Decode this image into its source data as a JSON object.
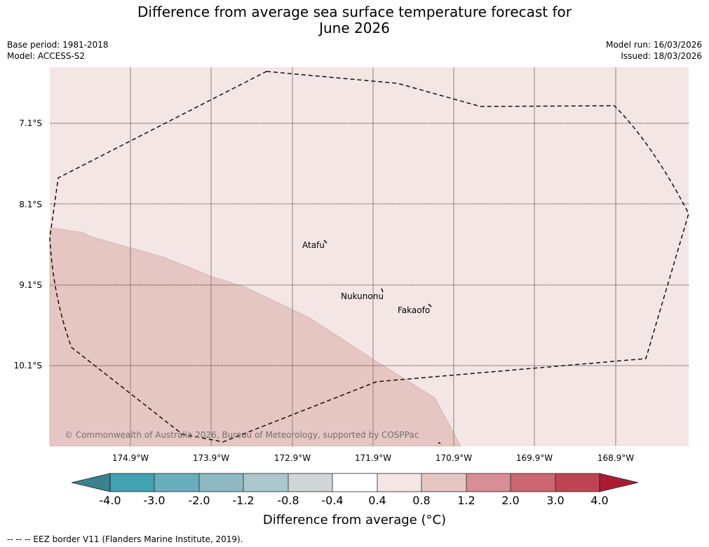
{
  "title_line1": "Difference from average sea surface temperature forecast for",
  "title_line2": "June 2026",
  "meta_left": {
    "base_period": "Base period: 1981-2018",
    "model": "Model: ACCESS-S2"
  },
  "meta_right": {
    "model_run": "Model run: 16/03/2026",
    "issued": "Issued: 18/03/2026"
  },
  "map": {
    "lat_labels": [
      "7.1°S",
      "8.1°S",
      "9.1°S",
      "10.1°S"
    ],
    "lon_labels": [
      "174.9°W",
      "173.9°W",
      "172.9°W",
      "171.9°W",
      "170.9°W",
      "169.9°W",
      "168.9°W"
    ],
    "places": [
      {
        "name": "Atafu",
        "lon": -172.52,
        "lat": -8.58
      },
      {
        "name": "Nukunonu",
        "lon": -171.8,
        "lat": -9.17
      },
      {
        "name": "Fakaofo",
        "lon": -171.21,
        "lat": -9.37
      }
    ],
    "copyright": "© Commonwealth of Australia 2026, Bureau of Meteorology, supported by COSPPac",
    "fill_colors": {
      "light": "#f4e6e5",
      "medium": "#e6c6c2",
      "border": "#c4a29e"
    },
    "anomaly_regions": [
      {
        "label": "0.4 to 0.8",
        "color": "#f4e6e5",
        "area": "most of map"
      },
      {
        "label": "0.8 to 1.2",
        "color": "#e6c6c2",
        "area": "south-west"
      }
    ]
  },
  "colorbar": {
    "ticks": [
      "-4.0",
      "-3.0",
      "-2.0",
      "-1.2",
      "-0.8",
      "-0.4",
      "0.4",
      "0.8",
      "1.2",
      "2.0",
      "3.0",
      "4.0"
    ],
    "colors": [
      "#41a2b2",
      "#69aebc",
      "#8db9c3",
      "#aac8cc",
      "#d0d6d8",
      "#ffffff",
      "#f4e6e5",
      "#e6c6c2",
      "#d78e95",
      "#cc6670",
      "#bf4452"
    ],
    "extend_low_color": "#38838f",
    "extend_high_color": "#ac1a34",
    "label": "Difference from average (°C)"
  },
  "footnote": "--  --  -- EEZ border V11 (Flanders Marine Institute, 2019)."
}
